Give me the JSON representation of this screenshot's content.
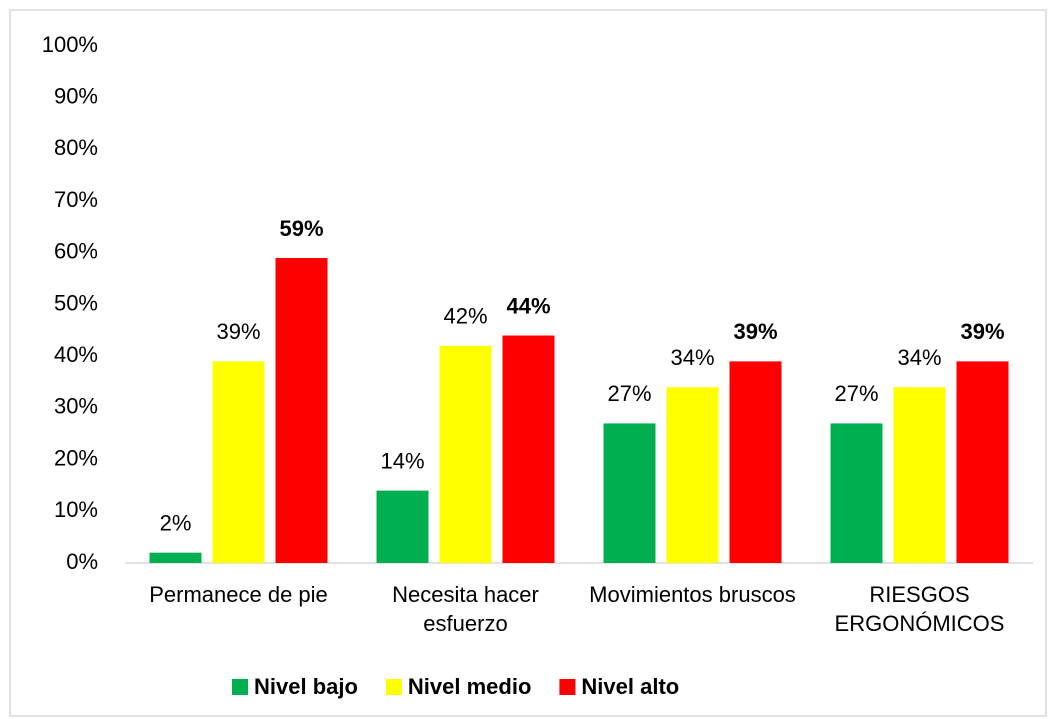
{
  "chart_data": {
    "type": "bar",
    "categories": [
      "Permanece de pie",
      "Necesita hacer esfuerzo",
      "Movimientos bruscos",
      "RIESGOS ERGONÓMICOS"
    ],
    "series": [
      {
        "name": "Nivel bajo",
        "color": "#00b050",
        "values": [
          2,
          14,
          27,
          27
        ],
        "value_labels": [
          "2%",
          "14%",
          "27%",
          "27%"
        ]
      },
      {
        "name": "Nivel medio",
        "color": "#ffff00",
        "values": [
          39,
          42,
          34,
          34
        ],
        "value_labels": [
          "39%",
          "42%",
          "34%",
          "34%"
        ]
      },
      {
        "name": "Nivel alto",
        "color": "#ff0000",
        "values": [
          59,
          44,
          39,
          39
        ],
        "value_labels": [
          "59%",
          "44%",
          "39%",
          "39%"
        ]
      }
    ],
    "ylim": [
      0,
      100
    ],
    "yticks": [
      {
        "value": 0,
        "label": "0%"
      },
      {
        "value": 10,
        "label": "10%"
      },
      {
        "value": 20,
        "label": "20%"
      },
      {
        "value": 30,
        "label": "30%"
      },
      {
        "value": 40,
        "label": "40%"
      },
      {
        "value": 50,
        "label": "50%"
      },
      {
        "value": 60,
        "label": "60%"
      },
      {
        "value": 70,
        "label": "70%"
      },
      {
        "value": 80,
        "label": "80%"
      },
      {
        "value": 90,
        "label": "90%"
      },
      {
        "value": 100,
        "label": "100%"
      }
    ],
    "grid": false,
    "legend": "bottom"
  }
}
